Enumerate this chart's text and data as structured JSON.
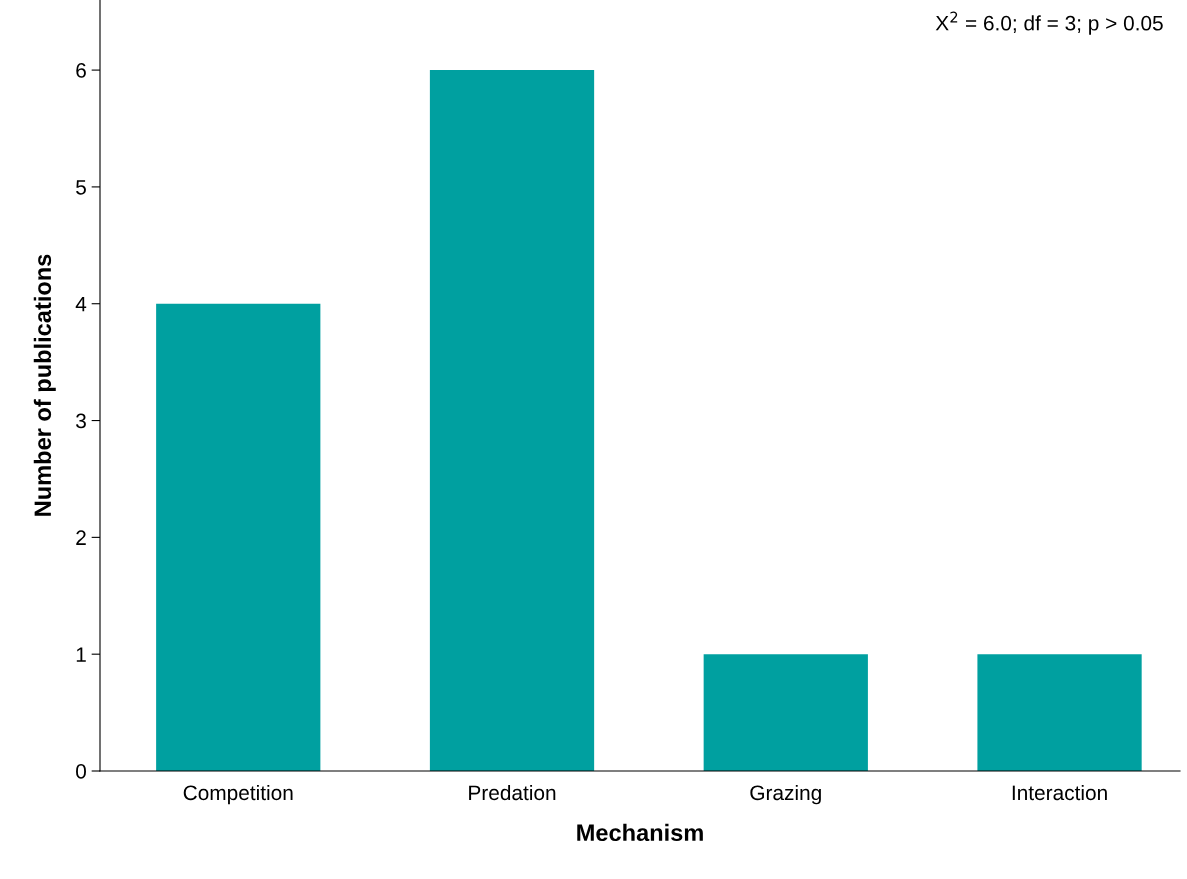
{
  "chart_data": {
    "type": "bar",
    "xlabel": "Mechanism",
    "ylabel": "Number of publications",
    "categories": [
      "Competition",
      "Predation",
      "Grazing",
      "Interaction"
    ],
    "values": [
      4,
      6,
      1,
      1
    ],
    "color": "#00a0a0",
    "ylim": [
      0,
      6.6
    ],
    "yticks": [
      0,
      1,
      2,
      3,
      4,
      5,
      6
    ],
    "grid": false,
    "legend": false,
    "annotations": [
      "X$^{2}$ = 6.0; df = 3; p > 0.05"
    ]
  }
}
